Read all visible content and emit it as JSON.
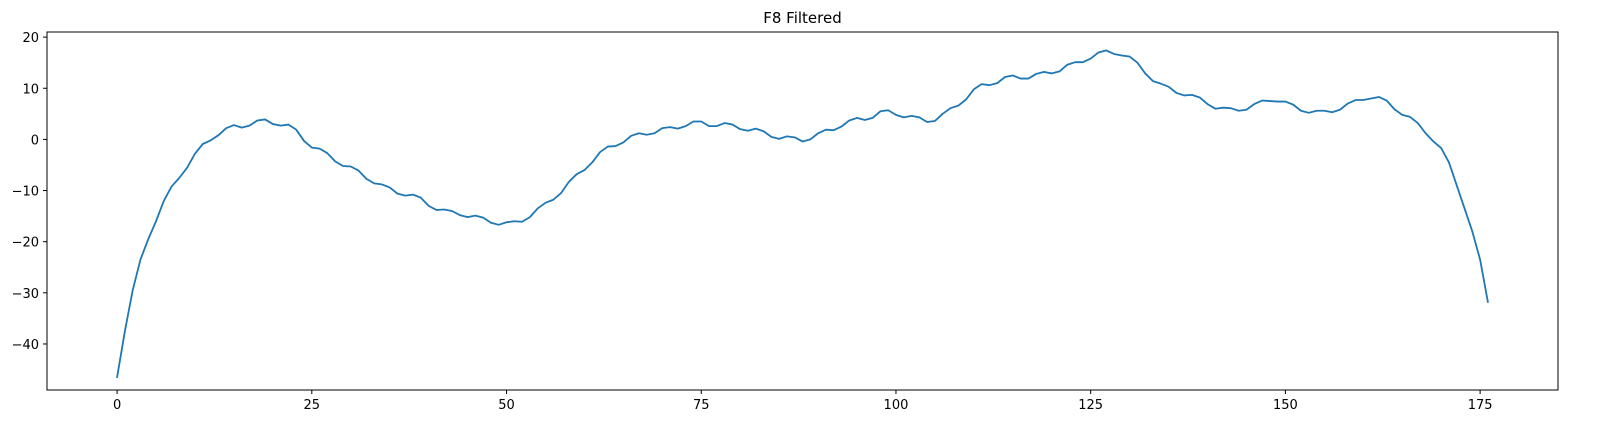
{
  "chart_data": {
    "type": "line",
    "title": "F8 Filtered",
    "xlabel": "",
    "ylabel": "",
    "xlim": [
      -9,
      185
    ],
    "ylim": [
      -49,
      21
    ],
    "xticks": [
      0,
      25,
      50,
      75,
      100,
      125,
      150,
      175
    ],
    "yticks": [
      -40,
      -30,
      -20,
      -10,
      0,
      10,
      20
    ],
    "grid": false,
    "line_color": "#1f77b4",
    "series": [
      {
        "x": [
          0,
          1,
          2,
          3,
          4,
          5,
          6,
          7,
          8,
          9,
          10,
          11,
          12,
          13,
          14,
          15,
          16,
          17,
          18,
          19,
          20,
          21,
          22,
          23,
          24,
          25,
          26,
          27,
          28,
          29,
          30,
          31,
          32,
          33,
          34,
          35,
          36,
          37,
          38,
          39,
          40,
          41,
          42,
          43,
          44,
          45,
          46,
          47,
          48,
          49,
          50,
          51,
          52,
          53,
          54,
          55,
          56,
          57,
          58,
          59,
          60,
          61,
          62,
          63,
          64,
          65,
          66,
          67,
          68,
          69,
          70,
          71,
          72,
          73,
          74,
          75,
          76,
          77,
          78,
          79,
          80,
          81,
          82,
          83,
          84,
          85,
          86,
          87,
          88,
          89,
          90,
          91,
          92,
          93,
          94,
          95,
          96,
          97,
          98,
          99,
          100,
          101,
          102,
          103,
          104,
          105,
          106,
          107,
          108,
          109,
          110,
          111,
          112,
          113,
          114,
          115,
          116,
          117,
          118,
          119,
          120,
          121,
          122,
          123,
          124,
          125,
          126,
          127,
          128,
          129,
          130,
          131,
          132,
          133,
          134,
          135,
          136,
          137,
          138,
          139,
          140,
          141,
          142,
          143,
          144,
          145,
          146,
          147,
          148,
          149,
          150,
          151,
          152,
          153,
          154,
          155,
          156,
          157,
          158,
          159,
          160,
          161,
          162,
          163,
          164,
          165,
          166,
          167,
          168,
          169,
          170,
          171,
          172,
          173,
          174,
          175,
          176
        ],
        "values": [
          -46.5,
          -37.5,
          -29.5,
          -23.5,
          -19.5,
          -16,
          -12,
          -9.2,
          -7.5,
          -5.5,
          -2.8,
          -0.9,
          -0.2,
          0.8,
          2.2,
          2.8,
          2.3,
          2.7,
          3.7,
          3.9,
          3.0,
          2.7,
          2.9,
          1.9,
          -0.3,
          -1.6,
          -1.8,
          -2.7,
          -4.3,
          -5.2,
          -5.3,
          -6.1,
          -7.7,
          -8.6,
          -8.8,
          -9.4,
          -10.6,
          -11.0,
          -10.8,
          -11.4,
          -13.0,
          -13.8,
          -13.7,
          -14.0,
          -14.8,
          -15.2,
          -14.9,
          -15.3,
          -16.3,
          -16.7,
          -16.2,
          -16.0,
          -16.1,
          -15.2,
          -13.5,
          -12.4,
          -11.8,
          -10.5,
          -8.3,
          -6.8,
          -6.0,
          -4.5,
          -2.5,
          -1.4,
          -1.3,
          -0.6,
          0.7,
          1.2,
          0.9,
          1.2,
          2.2,
          2.4,
          2.1,
          2.6,
          3.5,
          3.5,
          2.6,
          2.6,
          3.2,
          2.9,
          2.0,
          1.7,
          2.1,
          1.6,
          0.5,
          0.1,
          0.6,
          0.4,
          -0.4,
          0,
          1.2,
          1.9,
          1.8,
          2.5,
          3.7,
          4.2,
          3.8,
          4.2,
          5.5,
          5.7,
          4.8,
          4.3,
          4.6,
          4.3,
          3.4,
          3.6,
          5.0,
          6.1,
          6.6,
          7.8,
          9.8,
          10.8,
          10.6,
          11.0,
          12.2,
          12.5,
          11.9,
          11.9,
          12.8,
          13.2,
          12.9,
          13.3,
          14.6,
          15.1,
          15.1,
          15.8,
          17.0,
          17.4,
          16.7,
          16.4,
          16.2,
          15.0,
          12.9,
          11.4,
          10.9,
          10.3,
          9.1,
          8.6,
          8.7,
          8.2,
          6.9,
          6.0,
          6.2,
          6.1,
          5.6,
          5.8,
          6.9,
          7.6,
          7.5,
          7.4,
          7.4,
          6.8,
          5.6,
          5.2,
          5.6,
          5.6,
          5.3,
          5.8,
          7.0,
          7.7,
          7.7,
          8.0,
          8.3,
          7.6,
          5.9,
          4.8,
          4.4,
          3.2,
          1.2,
          -0.4,
          -1.7,
          -4.5,
          -9.0,
          -13.5,
          -18,
          -23.5,
          -31.8
        ]
      }
    ]
  }
}
